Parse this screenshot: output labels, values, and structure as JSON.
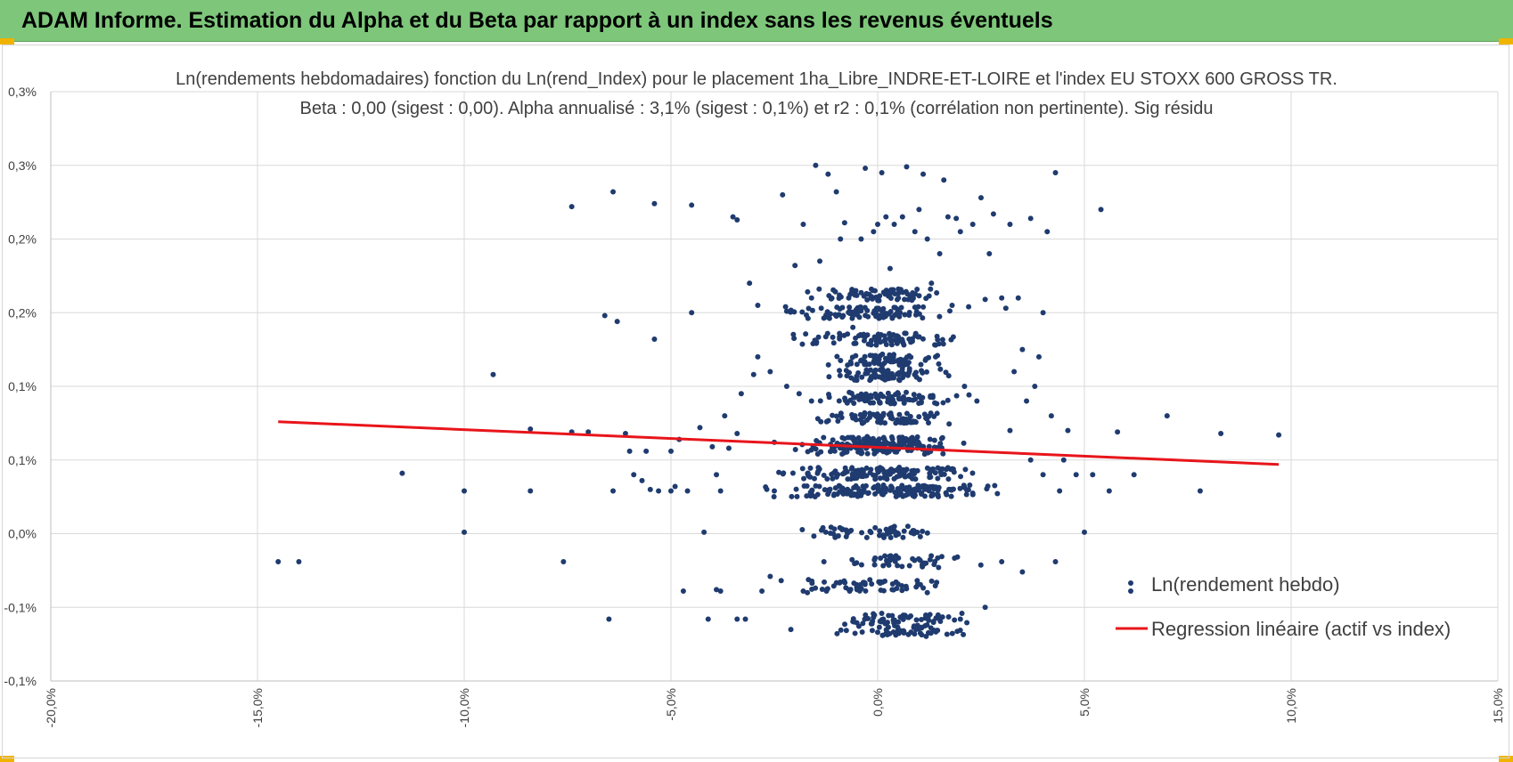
{
  "header": {
    "title": "ADAM Informe. Estimation du Alpha et du Beta par rapport à un index sans les revenus éventuels",
    "banner_color": "#7dc67a",
    "corner_color": "#f0b400"
  },
  "chart_data": {
    "type": "scatter",
    "title_line1": "Ln(rendements hebdomadaires) fonction du Ln(rend_Index) pour le placement 1ha_Libre_INDRE-ET-LOIRE et l'index EU STOXX 600 GROSS TR.",
    "title_line2": "Beta : 0,00 (sigest : 0,00). Alpha annualisé : 3,1% (sigest : 0,1%) et r2 : 0,1% (corrélation non pertinente). Sig résidu",
    "xlim": [
      -20,
      15
    ],
    "ylim": [
      -0.1,
      0.3
    ],
    "x_ticks": [
      {
        "value": -20,
        "label": "-20,0%"
      },
      {
        "value": -15,
        "label": "-15,0%"
      },
      {
        "value": -10,
        "label": "-10,0%"
      },
      {
        "value": -5,
        "label": "-5,0%"
      },
      {
        "value": 0,
        "label": "0,0%"
      },
      {
        "value": 5,
        "label": "5,0%"
      },
      {
        "value": 10,
        "label": "10,0%"
      },
      {
        "value": 15,
        "label": "15,0%"
      }
    ],
    "y_ticks": [
      {
        "value": 0.3,
        "label": "0,3%"
      },
      {
        "value": 0.25,
        "label": "0,3%"
      },
      {
        "value": 0.2,
        "label": "0,2%"
      },
      {
        "value": 0.15,
        "label": "0,2%"
      },
      {
        "value": 0.1,
        "label": "0,1%"
      },
      {
        "value": 0.05,
        "label": "0,1%"
      },
      {
        "value": 0.0,
        "label": "0,0%"
      },
      {
        "value": -0.05,
        "label": "-0,1%"
      },
      {
        "value": -0.1,
        "label": "-0,1%"
      }
    ],
    "grid": true,
    "legend_position": "bottom-right",
    "series": [
      {
        "name": "Ln(rendement hebdo)",
        "kind": "scatter",
        "color": "#1f3b6f",
        "points": [
          [
            -14.5,
            -0.019
          ],
          [
            -14.0,
            -0.019
          ],
          [
            -11.5,
            0.041
          ],
          [
            -10.0,
            0.029
          ],
          [
            -10.0,
            0.001
          ],
          [
            -9.3,
            0.108
          ],
          [
            -8.4,
            0.071
          ],
          [
            -8.4,
            0.029
          ],
          [
            -7.6,
            -0.019
          ],
          [
            -7.4,
            0.222
          ],
          [
            -7.4,
            0.069
          ],
          [
            -7.0,
            0.069
          ],
          [
            -6.6,
            0.148
          ],
          [
            -6.5,
            -0.058
          ],
          [
            -6.4,
            0.232
          ],
          [
            -6.4,
            0.029
          ],
          [
            -6.3,
            0.144
          ],
          [
            -6.1,
            0.068
          ],
          [
            -6.0,
            0.056
          ],
          [
            -5.9,
            0.04
          ],
          [
            -5.7,
            0.036
          ],
          [
            -5.6,
            0.056
          ],
          [
            -5.5,
            0.03
          ],
          [
            -5.4,
            0.224
          ],
          [
            -5.4,
            0.132
          ],
          [
            -5.3,
            0.029
          ],
          [
            -5.0,
            0.029
          ],
          [
            -5.0,
            0.056
          ],
          [
            -4.9,
            0.032
          ],
          [
            -4.8,
            0.064
          ],
          [
            -4.7,
            -0.039
          ],
          [
            -4.6,
            0.029
          ],
          [
            -4.5,
            0.223
          ],
          [
            -4.5,
            0.15
          ],
          [
            -4.2,
            0.001
          ],
          [
            -4.0,
            0.059
          ],
          [
            -3.9,
            0.04
          ],
          [
            -3.8,
            0.029
          ],
          [
            -3.6,
            0.058
          ],
          [
            -3.5,
            0.215
          ],
          [
            -3.4,
            0.213
          ],
          [
            -3.4,
            0.068
          ],
          [
            -3.2,
            -0.058
          ],
          [
            -3.1,
            0.17
          ],
          [
            -3.0,
            0.108
          ],
          [
            -2.9,
            0.155
          ],
          [
            -2.8,
            -0.039
          ],
          [
            -2.6,
            0.11
          ],
          [
            -2.5,
            0.029
          ],
          [
            -2.5,
            0.062
          ],
          [
            -2.3,
            0.23
          ],
          [
            -2.2,
            0.151
          ],
          [
            -2.1,
            -0.065
          ],
          [
            -2.0,
            0.182
          ],
          [
            -1.9,
            0.095
          ],
          [
            -1.8,
            0.21
          ],
          [
            -1.7,
            -0.04
          ],
          [
            -1.6,
            0.16
          ],
          [
            -1.5,
            0.25
          ],
          [
            -1.4,
            0.185
          ],
          [
            -1.2,
            0.244
          ],
          [
            -1.0,
            0.232
          ],
          [
            -0.9,
            0.2
          ],
          [
            -0.8,
            0.211
          ],
          [
            -0.7,
            0.16
          ],
          [
            -0.6,
            0.14
          ],
          [
            -0.4,
            0.2
          ],
          [
            -0.3,
            0.248
          ],
          [
            -0.2,
            0.115
          ],
          [
            -0.1,
            0.205
          ],
          [
            0.0,
            0.21
          ],
          [
            0.1,
            0.245
          ],
          [
            0.2,
            0.215
          ],
          [
            0.3,
            0.18
          ],
          [
            0.4,
            0.21
          ],
          [
            0.5,
            0.16
          ],
          [
            0.6,
            0.215
          ],
          [
            0.7,
            0.249
          ],
          [
            0.8,
            0.13
          ],
          [
            0.9,
            0.205
          ],
          [
            1.0,
            0.22
          ],
          [
            1.1,
            0.244
          ],
          [
            1.2,
            0.2
          ],
          [
            1.3,
            0.17
          ],
          [
            1.4,
            0.128
          ],
          [
            1.5,
            0.19
          ],
          [
            1.6,
            0.24
          ],
          [
            1.7,
            0.215
          ],
          [
            1.8,
            0.155
          ],
          [
            1.9,
            0.214
          ],
          [
            2.0,
            0.205
          ],
          [
            2.1,
            0.1
          ],
          [
            2.2,
            0.154
          ],
          [
            2.3,
            0.21
          ],
          [
            2.5,
            0.228
          ],
          [
            2.6,
            0.159
          ],
          [
            2.7,
            0.19
          ],
          [
            2.8,
            0.217
          ],
          [
            3.0,
            0.16
          ],
          [
            3.1,
            0.153
          ],
          [
            3.2,
            0.21
          ],
          [
            3.3,
            0.11
          ],
          [
            3.4,
            0.16
          ],
          [
            3.5,
            0.125
          ],
          [
            3.6,
            0.09
          ],
          [
            3.7,
            0.214
          ],
          [
            3.8,
            0.1
          ],
          [
            3.9,
            0.12
          ],
          [
            4.0,
            0.15
          ],
          [
            4.1,
            0.205
          ],
          [
            4.2,
            0.08
          ],
          [
            4.3,
            0.245
          ],
          [
            4.4,
            0.029
          ],
          [
            4.5,
            0.05
          ],
          [
            4.6,
            0.07
          ],
          [
            4.8,
            0.04
          ],
          [
            5.0,
            0.001
          ],
          [
            5.2,
            0.04
          ],
          [
            5.4,
            0.22
          ],
          [
            5.6,
            0.029
          ],
          [
            5.8,
            0.069
          ],
          [
            6.2,
            0.04
          ],
          [
            7.0,
            0.08
          ],
          [
            7.8,
            0.029
          ],
          [
            8.3,
            0.068
          ],
          [
            9.7,
            0.067
          ],
          [
            4.3,
            -0.019
          ],
          [
            3.5,
            -0.026
          ],
          [
            3.0,
            -0.019
          ],
          [
            2.6,
            -0.05
          ],
          [
            2.0,
            -0.058
          ],
          [
            1.2,
            -0.04
          ],
          [
            0.5,
            -0.06
          ],
          [
            -0.5,
            -0.038
          ],
          [
            -1.3,
            -0.019
          ],
          [
            -1.8,
            -0.039
          ],
          [
            -2.6,
            -0.029
          ],
          [
            -3.4,
            -0.058
          ],
          [
            -3.9,
            -0.038
          ],
          [
            -4.1,
            -0.058
          ],
          [
            -3.8,
            -0.039
          ],
          [
            4.0,
            0.04
          ],
          [
            3.7,
            0.05
          ],
          [
            3.2,
            0.07
          ],
          [
            2.4,
            0.09
          ],
          [
            1.4,
            0.12
          ],
          [
            0.2,
            0.105
          ],
          [
            -0.9,
            0.08
          ],
          [
            -1.6,
            0.09
          ],
          [
            -2.2,
            0.1
          ],
          [
            -2.9,
            0.12
          ],
          [
            -3.3,
            0.095
          ],
          [
            -3.7,
            0.08
          ],
          [
            -4.3,
            0.072
          ]
        ],
        "bands": [
          {
            "y": 0.029,
            "x": [
              -3.1,
              3.4
            ],
            "n": 160
          },
          {
            "y": 0.041,
            "x": [
              -2.8,
              3.0
            ],
            "n": 150
          },
          {
            "y": 0.058,
            "x": [
              -2.5,
              2.6
            ],
            "n": 110
          },
          {
            "y": 0.062,
            "x": [
              -2.2,
              2.4
            ],
            "n": 90
          },
          {
            "y": 0.078,
            "x": [
              -2.0,
              2.4
            ],
            "n": 80
          },
          {
            "y": 0.092,
            "x": [
              -2.0,
              2.4
            ],
            "n": 80
          },
          {
            "y": 0.108,
            "x": [
              -1.6,
              2.1
            ],
            "n": 70
          },
          {
            "y": 0.118,
            "x": [
              -1.6,
              2.1
            ],
            "n": 70
          },
          {
            "y": 0.132,
            "x": [
              -2.8,
              2.6
            ],
            "n": 80
          },
          {
            "y": 0.15,
            "x": [
              -3.0,
              2.6
            ],
            "n": 90
          },
          {
            "y": 0.162,
            "x": [
              -2.2,
              2.4
            ],
            "n": 70
          },
          {
            "y": 0.001,
            "x": [
              -2.7,
              2.3
            ],
            "n": 55
          },
          {
            "y": -0.019,
            "x": [
              -1.4,
              2.7
            ],
            "n": 45
          },
          {
            "y": -0.035,
            "x": [
              -2.9,
              2.5
            ],
            "n": 60
          },
          {
            "y": -0.058,
            "x": [
              -1.5,
              2.7
            ],
            "n": 55
          },
          {
            "y": -0.066,
            "x": [
              -1.5,
              2.5
            ],
            "n": 55
          }
        ]
      },
      {
        "name": "Regression linéaire (actif vs index)",
        "kind": "line",
        "color": "#e8151b",
        "x": [
          -14.5,
          9.7
        ],
        "y": [
          0.076,
          0.047
        ]
      }
    ]
  }
}
